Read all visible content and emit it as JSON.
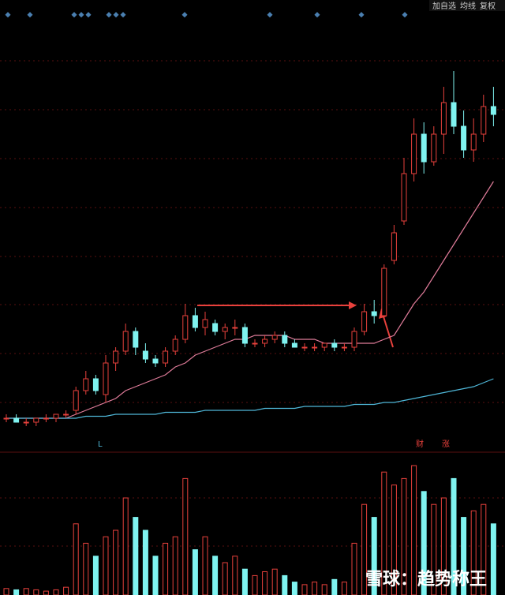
{
  "toolbar": [
    "加自选",
    "均线",
    "复权"
  ],
  "labels": {
    "left": "L",
    "right1": "财",
    "right2": "涨"
  },
  "watermark": "雪球：趋势称王",
  "chart_data": [
    {
      "type": "candlestick",
      "ylim": [
        0,
        102
      ],
      "up_color": "#e8413c",
      "down_color": "#7ff3f0",
      "open": [
        8,
        8,
        7,
        7,
        8,
        8,
        9,
        10,
        15,
        18,
        14,
        22,
        25,
        30,
        25,
        23,
        22,
        25,
        28,
        34,
        31,
        32,
        30,
        31,
        31,
        27,
        27,
        28,
        29,
        27,
        26,
        26,
        26,
        27,
        26,
        26,
        30,
        35,
        34,
        48,
        58,
        70,
        80,
        73,
        80,
        88,
        82,
        76,
        80,
        87
      ],
      "high": [
        9,
        9,
        8,
        8,
        9,
        9,
        10,
        16,
        20,
        19,
        24,
        26,
        32,
        31,
        27,
        24,
        26,
        29,
        37,
        36,
        35,
        33,
        32,
        33,
        32,
        28,
        29,
        30,
        30,
        28,
        27,
        27,
        27,
        28,
        27,
        31,
        37,
        38,
        47,
        57,
        74,
        84,
        83,
        82,
        92,
        96,
        86,
        84,
        90,
        92
      ],
      "low": [
        7,
        7,
        6,
        6,
        7,
        7,
        8,
        9,
        14,
        14,
        12,
        20,
        24,
        24,
        22,
        21,
        21,
        24,
        27,
        30,
        29,
        29,
        28,
        29,
        26,
        26,
        26,
        27,
        26,
        26,
        25,
        25,
        25,
        25,
        25,
        25,
        29,
        32,
        33,
        47,
        57,
        68,
        70,
        72,
        75,
        80,
        74,
        73,
        78,
        82
      ],
      "close": [
        8,
        7,
        7,
        8,
        8,
        9,
        9,
        15,
        18,
        15,
        22,
        25,
        30,
        26,
        23,
        22,
        25,
        28,
        34,
        31,
        33,
        30,
        31,
        31,
        27,
        27,
        28,
        29,
        27,
        26,
        26,
        26,
        27,
        26,
        26,
        30,
        35,
        34,
        46,
        55,
        70,
        80,
        73,
        80,
        88,
        82,
        76,
        80,
        87,
        85
      ],
      "lines": [
        {
          "color": "#e07c9a",
          "values": [
            8,
            8,
            8,
            8,
            8,
            8,
            8,
            9,
            10,
            11,
            12,
            13,
            15,
            16,
            17,
            18,
            19,
            21,
            22,
            24,
            25,
            26,
            27,
            28,
            28,
            29,
            29,
            29,
            29,
            28,
            28,
            28,
            27,
            27,
            27,
            27,
            27,
            27,
            28,
            29,
            33,
            37,
            40,
            44,
            48,
            52,
            56,
            60,
            64,
            68
          ]
        },
        {
          "color": "#4fb7d8",
          "values": [
            8,
            8,
            8,
            8,
            8,
            8,
            8,
            8,
            8.5,
            8.5,
            8.5,
            9,
            9,
            9,
            9,
            9,
            9.5,
            9.5,
            9.5,
            9.5,
            10,
            10,
            10,
            10,
            10,
            10,
            10.5,
            10.5,
            10.5,
            10.5,
            11,
            11,
            11,
            11,
            11,
            11.5,
            11.5,
            11.5,
            12,
            12,
            12.5,
            13,
            13.5,
            14,
            14.5,
            15,
            15.5,
            16,
            17,
            18
          ]
        }
      ]
    },
    {
      "type": "volume",
      "ylim": [
        0,
        100
      ],
      "values": [
        5,
        4,
        5,
        4,
        3,
        4,
        6,
        55,
        40,
        30,
        45,
        50,
        75,
        60,
        50,
        30,
        40,
        45,
        90,
        35,
        45,
        30,
        25,
        30,
        20,
        15,
        18,
        20,
        15,
        10,
        8,
        10,
        8,
        12,
        10,
        40,
        70,
        60,
        95,
        85,
        90,
        100,
        80,
        70,
        75,
        90,
        60,
        65,
        70,
        55
      ]
    }
  ]
}
